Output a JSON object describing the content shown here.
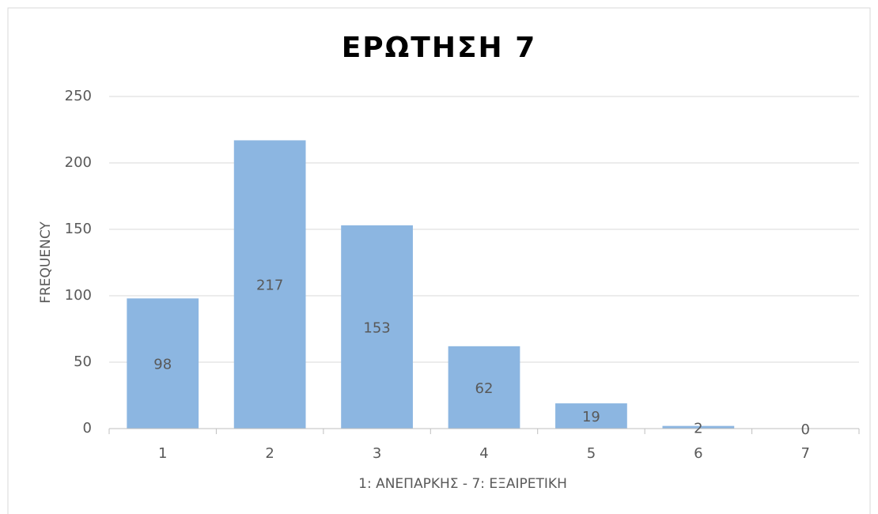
{
  "chart_data": {
    "type": "bar",
    "title": "ΕΡΩΤΗΣΗ 7",
    "x_label": "1: ΑΝΕΠΑΡΚΗΣ - 7: ΕΞΑΙΡΕΤΙΚΗ",
    "y_label": "FREQUENCY",
    "categories": [
      "1",
      "2",
      "3",
      "4",
      "5",
      "6",
      "7"
    ],
    "values": [
      98,
      217,
      153,
      62,
      19,
      2,
      0
    ],
    "color": "#8cb6e1",
    "ylim": [
      0,
      250
    ],
    "yticks": [
      0,
      50,
      100,
      150,
      200,
      250
    ],
    "grid": true
  }
}
